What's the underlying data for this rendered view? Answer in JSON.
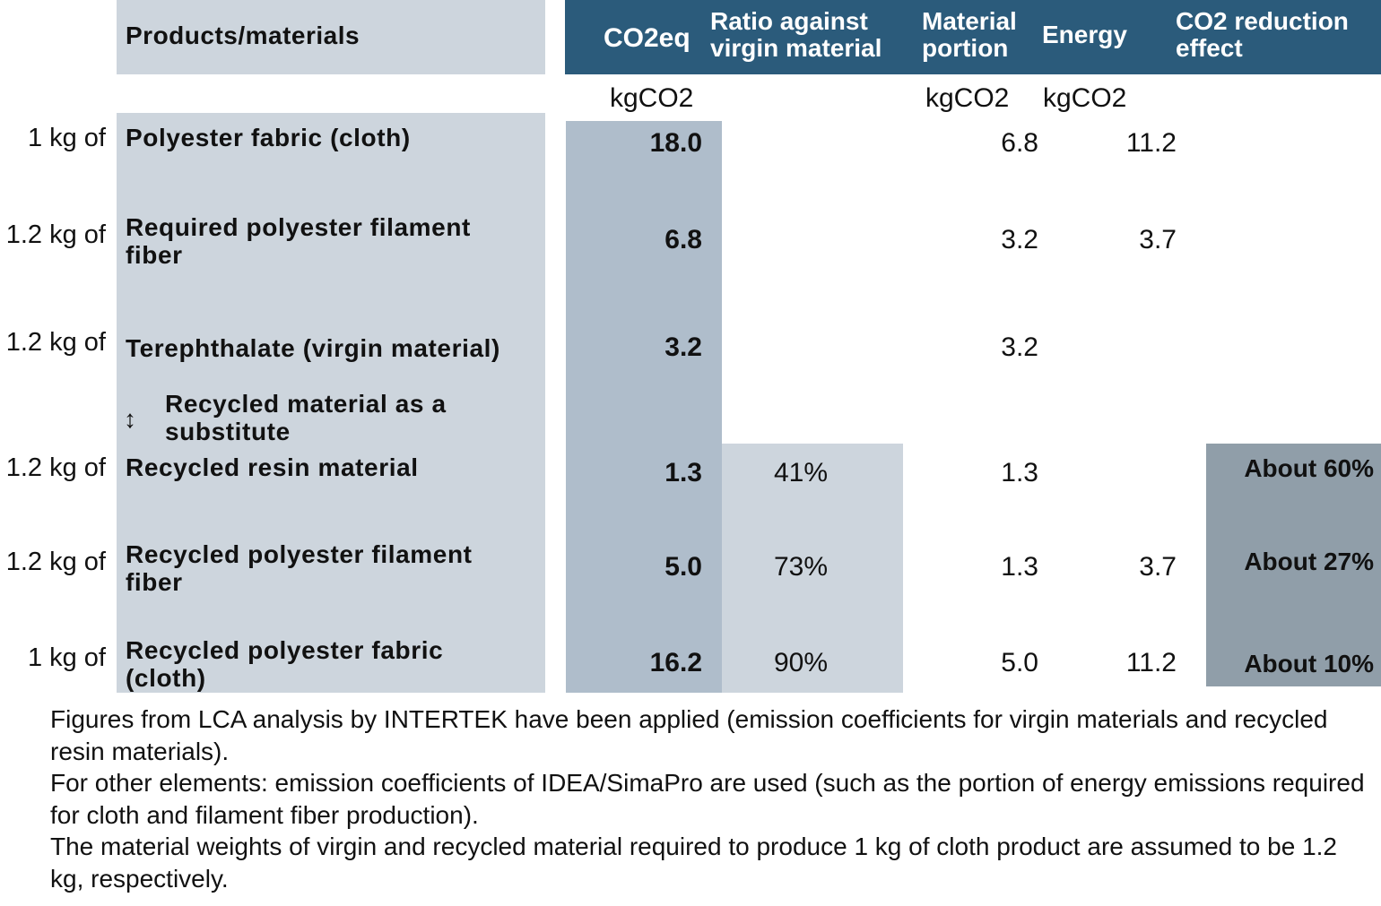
{
  "colors": {
    "header": "#2b5b7b",
    "light": "#cdd5dd",
    "co2eq_column": "#afbdcb",
    "reduction_column": "#909ea9"
  },
  "header": {
    "products": "Products/materials",
    "co2eq": "CO2eq",
    "ratio": [
      "Ratio against",
      "virgin material"
    ],
    "material": [
      "Material",
      "portion"
    ],
    "energy": "Energy",
    "reduction": [
      "CO2 reduction",
      "effect"
    ]
  },
  "units": {
    "co2eq": "kgCO2",
    "material": "kgCO2",
    "energy": "kgCO2"
  },
  "rows": [
    {
      "qty": "1 kg of",
      "product": [
        "Polyester fabric (cloth)"
      ],
      "co2eq": "18.0",
      "ratio": "",
      "material": "6.8",
      "energy": "11.2",
      "reduction": ""
    },
    {
      "qty": "1.2 kg of",
      "product": [
        "Required polyester filament",
        "fiber"
      ],
      "co2eq": "6.8",
      "ratio": "",
      "material": "3.2",
      "energy": "3.7",
      "reduction": ""
    },
    {
      "qty": "1.2 kg of",
      "product": [
        "Terephthalate (virgin material)"
      ],
      "co2eq": "3.2",
      "ratio": "",
      "material": "3.2",
      "energy": "",
      "reduction": ""
    },
    {
      "qty": "1.2 kg of",
      "product": [
        "Recycled resin material"
      ],
      "co2eq": "1.3",
      "ratio": "41%",
      "material": "1.3",
      "energy": "",
      "reduction": "About 60%"
    },
    {
      "qty": "1.2 kg of",
      "product": [
        "Recycled polyester filament",
        "fiber"
      ],
      "co2eq": "5.0",
      "ratio": "73%",
      "material": "1.3",
      "energy": "3.7",
      "reduction": "About 27%"
    },
    {
      "qty": "1 kg of",
      "product": [
        "Recycled polyester fabric",
        "(cloth)"
      ],
      "co2eq": "16.2",
      "ratio": "90%",
      "material": "5.0",
      "energy": "11.2",
      "reduction": "About 10%"
    }
  ],
  "substitute": {
    "icon": "up-down-arrow-icon",
    "glyph": "↕",
    "label": [
      "Recycled material as a",
      "substitute"
    ]
  },
  "notes": [
    "Figures from LCA analysis by INTERTEK have been applied (emission coefficients for virgin materials and recycled resin materials).",
    "For other elements: emission coefficients of IDEA/SimaPro are used (such as the portion of energy emissions required for cloth and filament fiber production).",
    "The material weights of virgin and recycled material required to produce 1 kg of cloth product are assumed to be 1.2 kg, respectively."
  ]
}
